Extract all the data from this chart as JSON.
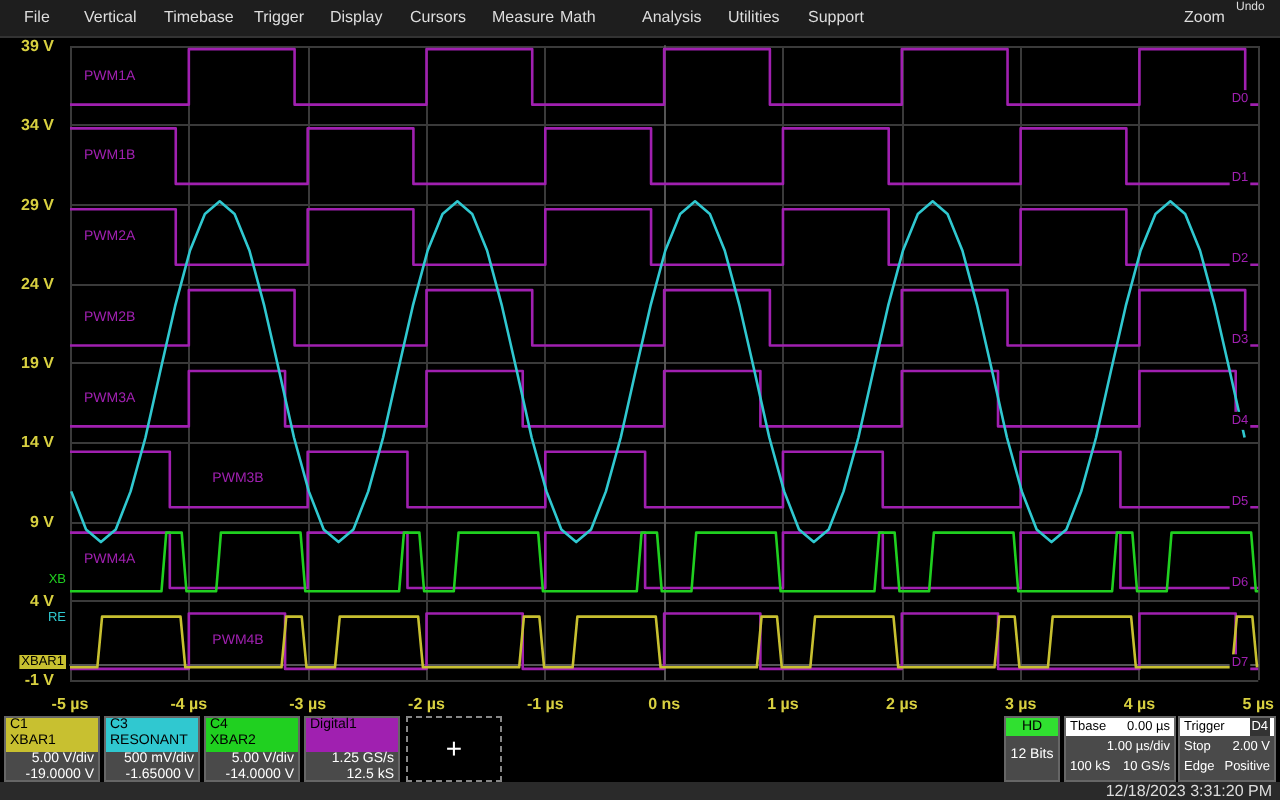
{
  "chart_data": {
    "type": "step",
    "xlim": [
      -5,
      5
    ],
    "ylim": [
      -1,
      39
    ],
    "xticks": [
      {
        "value": -5,
        "label": "-5 µs"
      },
      {
        "value": -4,
        "label": "-4 µs"
      },
      {
        "value": -3,
        "label": "-3 µs"
      },
      {
        "value": -2,
        "label": "-2 µs"
      },
      {
        "value": -1,
        "label": "-1 µs"
      },
      {
        "value": 0,
        "label": "0 ns"
      },
      {
        "value": 1,
        "label": "1 µs"
      },
      {
        "value": 2,
        "label": "2 µs"
      },
      {
        "value": 3,
        "label": "3 µs"
      },
      {
        "value": 4,
        "label": "4 µs"
      },
      {
        "value": 5,
        "label": "5 µs"
      }
    ],
    "yticks": [
      {
        "value": -1,
        "label": "-1 V"
      },
      {
        "value": 4,
        "label": "4 V"
      },
      {
        "value": 9,
        "label": "9 V"
      },
      {
        "value": 14,
        "label": "14 V"
      },
      {
        "value": 19,
        "label": "19 V"
      },
      {
        "value": 24,
        "label": "24 V"
      },
      {
        "value": 29,
        "label": "29 V"
      },
      {
        "value": 34,
        "label": "34 V"
      },
      {
        "value": 39,
        "label": "39 V"
      }
    ],
    "grid": true,
    "legend": "bottom",
    "series": [
      {
        "name": "PWM1A",
        "color": "#a020b0",
        "x": [
          -5,
          -4,
          -3.11,
          -2,
          -1.11,
          0,
          0.89,
          2,
          2.89,
          4,
          4.89,
          5
        ],
        "values": [
          35.3,
          38.8,
          35.3,
          38.8,
          35.3,
          38.8,
          35.3,
          38.8,
          35.3,
          38.8,
          35.3,
          35.3
        ]
      },
      {
        "name": "PWM1B",
        "color": "#a020b0",
        "x": [
          -5,
          -4.11,
          -3,
          -2.11,
          -1,
          -0.11,
          1,
          1.89,
          3,
          3.89,
          5
        ],
        "values": [
          33.8,
          30.3,
          33.8,
          30.3,
          33.8,
          30.3,
          33.8,
          30.3,
          33.8,
          30.3,
          30.3
        ]
      },
      {
        "name": "PWM2A",
        "color": "#a020b0",
        "x": [
          -5,
          -4.11,
          -3,
          -2.11,
          -1,
          -0.11,
          1,
          1.89,
          3,
          3.89,
          5
        ],
        "values": [
          28.7,
          25.2,
          28.7,
          25.2,
          28.7,
          25.2,
          28.7,
          25.2,
          28.7,
          25.2,
          25.2
        ]
      },
      {
        "name": "PWM2B",
        "color": "#a020b0",
        "x": [
          -5,
          -4,
          -3.11,
          -2,
          -1.11,
          0,
          0.89,
          2,
          2.89,
          4,
          4.89,
          5
        ],
        "values": [
          20.1,
          23.6,
          20.1,
          23.6,
          20.1,
          23.6,
          20.1,
          23.6,
          20.1,
          23.6,
          20.1,
          20.1
        ]
      },
      {
        "name": "PWM3A",
        "color": "#a020b0",
        "x": [
          -5,
          -4,
          -3.19,
          -2,
          -1.19,
          0,
          0.81,
          2,
          2.81,
          4,
          4.81,
          5
        ],
        "values": [
          15.0,
          18.5,
          15.0,
          18.5,
          15.0,
          18.5,
          15.0,
          18.5,
          15.0,
          18.5,
          15.0,
          15.0
        ]
      },
      {
        "name": "PWM3B",
        "color": "#a020b0",
        "x": [
          -5,
          -4.16,
          -3,
          -2.16,
          -1,
          -0.16,
          1,
          1.84,
          3,
          3.84,
          5
        ],
        "values": [
          13.4,
          9.9,
          13.4,
          9.9,
          13.4,
          9.9,
          13.4,
          9.9,
          13.4,
          9.9,
          9.9
        ]
      },
      {
        "name": "PWM4A",
        "color": "#a020b0",
        "x": [
          -5,
          -4.16,
          -3,
          -2.16,
          -1,
          -0.16,
          1,
          1.84,
          3,
          3.84,
          5
        ],
        "values": [
          8.3,
          4.8,
          8.3,
          4.8,
          8.3,
          4.8,
          8.3,
          4.8,
          8.3,
          4.8,
          4.8
        ]
      },
      {
        "name": "PWM4B",
        "color": "#a020b0",
        "x": [
          -5,
          -4,
          -3.19,
          -2,
          -1.19,
          0,
          0.81,
          2,
          2.81,
          4,
          4.81,
          5
        ],
        "values": [
          -0.3,
          3.2,
          -0.3,
          3.2,
          -0.3,
          3.2,
          -0.3,
          3.2,
          -0.3,
          3.2,
          -0.3,
          -0.3
        ]
      },
      {
        "name": "XBAR1",
        "type": "line",
        "color": "#c8c030",
        "x": [
          -5,
          -4.77,
          -4.73,
          -4.07,
          -4.03,
          -3.22,
          -3.18,
          -3.05,
          -3.01,
          -2.77,
          -2.73,
          -2.07,
          -2.03,
          -1.22,
          -1.18,
          -1.05,
          -1.01,
          -0.77,
          -0.73,
          -0.07,
          -0.03,
          0.78,
          0.82,
          0.95,
          0.99,
          1.23,
          1.27,
          1.93,
          1.97,
          2.78,
          2.82,
          2.95,
          2.99,
          3.23,
          3.27,
          3.93,
          3.97,
          4.78,
          4.82,
          4.95,
          4.99,
          5
        ],
        "values": [
          -0.2,
          -0.2,
          3.0,
          3.0,
          -0.2,
          -0.2,
          3.0,
          3.0,
          -0.2,
          -0.2,
          3.0,
          3.0,
          -0.2,
          -0.2,
          3.0,
          3.0,
          -0.2,
          -0.2,
          3.0,
          3.0,
          -0.2,
          -0.2,
          3.0,
          3.0,
          -0.2,
          -0.2,
          3.0,
          3.0,
          -0.2,
          -0.2,
          3.0,
          3.0,
          -0.2,
          -0.2,
          3.0,
          3.0,
          -0.2,
          -0.2,
          3.0,
          3.0,
          -0.2,
          -0.2
        ]
      },
      {
        "name": "RESONANT",
        "type": "line",
        "color": "#30c8d0",
        "x": [
          -4.99,
          -4.865,
          -4.74,
          -4.615,
          -4.49,
          -4.365,
          -4.24,
          -4.115,
          -3.99,
          -3.865,
          -3.74,
          -3.615,
          -3.49,
          -3.365,
          -3.24,
          -3.115,
          -2.99,
          -2.865,
          -2.74,
          -2.615,
          -2.49,
          -2.365,
          -2.24,
          -2.115,
          -1.99,
          -1.865,
          -1.74,
          -1.615,
          -1.49,
          -1.365,
          -1.24,
          -1.115,
          -0.99,
          -0.865,
          -0.74,
          -0.615,
          -0.49,
          -0.365,
          -0.24,
          -0.115,
          0.01,
          0.135,
          0.26,
          0.385,
          0.51,
          0.635,
          0.76,
          0.885,
          1.01,
          1.135,
          1.26,
          1.385,
          1.51,
          1.635,
          1.76,
          1.885,
          2.01,
          2.135,
          2.26,
          2.385,
          2.51,
          2.635,
          2.76,
          2.885,
          3.01,
          3.135,
          3.26,
          3.385,
          3.51,
          3.635,
          3.76,
          3.885,
          4.01,
          4.135,
          4.26,
          4.385,
          4.51,
          4.635,
          4.76,
          4.885
        ],
        "values": [
          10.9,
          8.5,
          7.7,
          8.5,
          10.9,
          14.3,
          18.5,
          22.6,
          26.1,
          28.4,
          29.2,
          28.4,
          26.1,
          22.6,
          18.5,
          14.3,
          10.9,
          8.5,
          7.7,
          8.5,
          10.9,
          14.3,
          18.5,
          22.6,
          26.1,
          28.4,
          29.2,
          28.4,
          26.1,
          22.6,
          18.5,
          14.3,
          10.9,
          8.5,
          7.7,
          8.5,
          10.9,
          14.3,
          18.5,
          22.6,
          26.1,
          28.4,
          29.2,
          28.4,
          26.1,
          22.6,
          18.5,
          14.3,
          10.9,
          8.5,
          7.7,
          8.5,
          10.9,
          14.3,
          18.5,
          22.6,
          26.1,
          28.4,
          29.2,
          28.4,
          26.1,
          22.6,
          18.5,
          14.3,
          10.9,
          8.5,
          7.7,
          8.5,
          10.9,
          14.3,
          18.5,
          22.6,
          26.1,
          28.4,
          29.2,
          28.4,
          26.1,
          22.6,
          18.5,
          14.3
        ]
      },
      {
        "name": "XBAR2",
        "type": "line",
        "color": "#20d020",
        "x": [
          -5,
          -4.23,
          -4.19,
          -4.06,
          -4.02,
          -3.77,
          -3.73,
          -3.06,
          -3.02,
          -2.23,
          -2.19,
          -2.06,
          -2.02,
          -1.77,
          -1.73,
          -1.06,
          -1.02,
          -0.23,
          -0.19,
          -0.06,
          -0.02,
          0.23,
          0.27,
          0.94,
          0.98,
          1.77,
          1.81,
          1.94,
          1.98,
          2.23,
          2.27,
          2.94,
          2.98,
          3.77,
          3.81,
          3.94,
          3.98,
          4.23,
          4.27,
          4.94,
          4.98,
          5
        ],
        "values": [
          4.6,
          4.6,
          8.3,
          8.3,
          4.6,
          4.6,
          8.3,
          8.3,
          4.6,
          4.6,
          8.3,
          8.3,
          4.6,
          4.6,
          8.3,
          8.3,
          4.6,
          4.6,
          8.3,
          8.3,
          4.6,
          4.6,
          8.3,
          8.3,
          4.6,
          4.6,
          8.3,
          8.3,
          4.6,
          4.6,
          8.3,
          8.3,
          4.6,
          4.6,
          8.3,
          8.3,
          4.6,
          4.6,
          8.3,
          8.3,
          4.6,
          4.6
        ]
      }
    ],
    "annotations": [
      "File",
      "Vertical",
      "Timebase",
      "Trigger",
      "Display",
      "Cursors",
      "Measure",
      "Math",
      "Analysis",
      "Utilities",
      "Support",
      "Zoom",
      "Undo",
      "D0",
      "D1",
      "D2",
      "D3",
      "D4",
      "D5",
      "D6",
      "D7",
      "XB",
      "RE",
      "XBAR1",
      "C1",
      "5.00 V/div",
      "-19.0000 V",
      "C3",
      "500 mV/div",
      "-1.65000 V",
      "C4",
      "5.00 V/div",
      "-14.0000 V",
      "Digital1",
      "1.25 GS/s",
      "12.5 kS",
      "+",
      "HD",
      "12 Bits",
      "Tbase",
      "0.00 µs",
      "1.00 µs/div",
      "100 kS",
      "10 GS/s",
      "Trigger",
      "D4",
      "Stop",
      "2.00 V",
      "Edge",
      "Positive",
      "12/18/2023 3:31:20 PM"
    ]
  }
}
